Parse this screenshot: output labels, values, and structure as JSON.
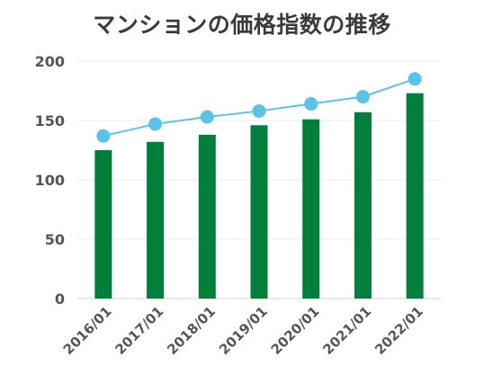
{
  "chart_data": {
    "type": "bar",
    "title": "マンションの価格指数の推移",
    "categories": [
      "2016/01",
      "2017/01",
      "2018/01",
      "2019/01",
      "2020/01",
      "2021/01",
      "2022/01"
    ],
    "series": [
      {
        "type": "bar",
        "color": "#007f3b",
        "values": [
          125,
          132,
          138,
          146,
          151,
          157,
          173
        ]
      },
      {
        "type": "line",
        "color": "#5bc3e8",
        "values": [
          137,
          147,
          153,
          158,
          164,
          170,
          185
        ]
      }
    ],
    "ylim": [
      0,
      200
    ],
    "yticks": [
      "0",
      "50",
      "100",
      "150",
      "200"
    ],
    "grid": true,
    "xlabel": "",
    "ylabel": ""
  }
}
